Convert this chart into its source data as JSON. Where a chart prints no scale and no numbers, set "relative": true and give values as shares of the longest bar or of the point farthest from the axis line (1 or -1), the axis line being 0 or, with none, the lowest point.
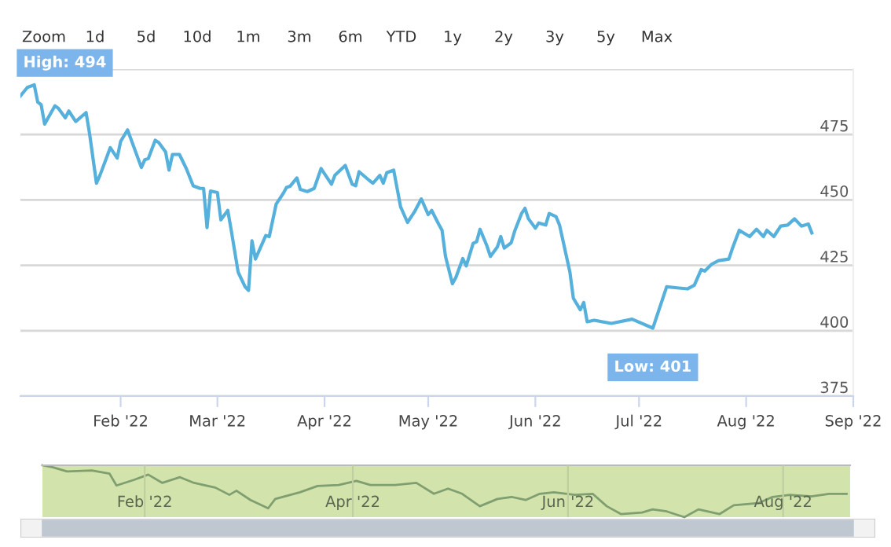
{
  "chart_data": [
    {
      "type": "line",
      "color": "#55b0dc",
      "xlim": [
        "2022-01-03",
        "2022-09-01"
      ],
      "ylim": [
        375,
        500
      ],
      "yticks": [
        375,
        400,
        425,
        450,
        475,
        {
          "value": 500,
          "label": null
        }
      ],
      "xticks": [
        {
          "value": "2022-02-01",
          "label": "Feb '22"
        },
        {
          "value": "2022-03-01",
          "label": "Mar '22"
        },
        {
          "value": "2022-04-01",
          "label": "Apr '22"
        },
        {
          "value": "2022-05-01",
          "label": "May '22"
        },
        {
          "value": "2022-06-01",
          "label": "Jun '22"
        },
        {
          "value": "2022-07-01",
          "label": "Jul '22"
        },
        {
          "value": "2022-08-01",
          "label": "Aug '22"
        },
        {
          "value": "2022-09-01",
          "label": "Sep '22"
        }
      ],
      "grid": "y",
      "x": [
        "2022-01-03",
        "2022-01-05",
        "2022-01-07",
        "2022-01-08",
        "2022-01-09",
        "2022-01-10",
        "2022-01-13",
        "2022-01-14",
        "2022-01-16",
        "2022-01-17",
        "2022-01-19",
        "2022-01-22",
        "2022-01-23",
        "2022-01-25",
        "2022-01-26",
        "2022-01-28",
        "2022-01-29",
        "2022-01-31",
        "2022-02-01",
        "2022-02-03",
        "2022-02-07",
        "2022-02-08",
        "2022-02-09",
        "2022-02-11",
        "2022-02-12",
        "2022-02-14",
        "2022-02-15",
        "2022-02-16",
        "2022-02-18",
        "2022-02-20",
        "2022-02-22",
        "2022-02-24",
        "2022-02-25",
        "2022-02-26",
        "2022-02-27",
        "2022-03-01",
        "2022-03-02",
        "2022-03-04",
        "2022-03-05",
        "2022-03-07",
        "2022-03-09",
        "2022-03-10",
        "2022-03-11",
        "2022-03-12",
        "2022-03-15",
        "2022-03-16",
        "2022-03-18",
        "2022-03-20",
        "2022-03-21",
        "2022-03-22",
        "2022-03-24",
        "2022-03-25",
        "2022-03-27",
        "2022-03-29",
        "2022-03-31",
        "2022-04-01",
        "2022-04-03",
        "2022-04-04",
        "2022-04-07",
        "2022-04-09",
        "2022-04-10",
        "2022-04-11",
        "2022-04-14",
        "2022-04-15",
        "2022-04-17",
        "2022-04-18",
        "2022-04-19",
        "2022-04-21",
        "2022-04-23",
        "2022-04-25",
        "2022-04-27",
        "2022-04-29",
        "2022-05-01",
        "2022-05-02",
        "2022-05-04",
        "2022-05-05",
        "2022-05-06",
        "2022-05-08",
        "2022-05-09",
        "2022-05-11",
        "2022-05-12",
        "2022-05-14",
        "2022-05-15",
        "2022-05-16",
        "2022-05-18",
        "2022-05-19",
        "2022-05-21",
        "2022-05-22",
        "2022-05-23",
        "2022-05-25",
        "2022-05-26",
        "2022-05-28",
        "2022-05-29",
        "2022-05-30",
        "2022-06-01",
        "2022-06-02",
        "2022-06-04",
        "2022-06-05",
        "2022-06-07",
        "2022-06-08",
        "2022-06-09",
        "2022-06-11",
        "2022-06-12",
        "2022-06-14",
        "2022-06-15",
        "2022-06-16",
        "2022-06-18",
        "2022-06-23",
        "2022-06-29",
        "2022-07-05",
        "2022-07-09",
        "2022-07-12",
        "2022-07-15",
        "2022-07-17",
        "2022-07-19",
        "2022-07-20",
        "2022-07-22",
        "2022-07-24",
        "2022-07-27",
        "2022-07-28",
        "2022-07-30",
        "2022-08-02",
        "2022-08-04",
        "2022-08-06",
        "2022-08-07",
        "2022-08-09",
        "2022-08-11",
        "2022-08-13",
        "2022-08-15",
        "2022-08-17",
        "2022-08-19",
        "2022-08-20"
      ],
      "values": [
        489.8,
        493,
        494,
        487.4,
        486.4,
        479,
        486,
        485,
        481.4,
        484,
        480,
        483.4,
        475.4,
        456.4,
        459.4,
        466.4,
        470,
        466,
        472.4,
        476.8,
        462.4,
        465.4,
        465.8,
        472.8,
        472,
        468.4,
        461.4,
        467.4,
        467.4,
        462,
        455.4,
        454.4,
        454.4,
        439.4,
        453.4,
        452.8,
        442.4,
        446,
        438.4,
        422.4,
        416.8,
        415.4,
        434.4,
        427.4,
        436.4,
        436,
        448.4,
        452.4,
        454.8,
        455.2,
        458.4,
        454,
        453.2,
        454.4,
        462,
        460,
        456,
        459.4,
        463.2,
        456,
        455.4,
        460.8,
        457.4,
        456.4,
        459.4,
        456.4,
        460.4,
        461.4,
        447.4,
        441.4,
        445.4,
        450.4,
        444.4,
        446,
        440.8,
        438.4,
        428.4,
        418,
        420.4,
        427.6,
        424.8,
        433.4,
        434,
        438.8,
        432.4,
        428.4,
        432,
        436,
        431.6,
        433.6,
        438,
        444.8,
        446.8,
        442.8,
        439.2,
        441.2,
        440.4,
        444.8,
        443.6,
        440.4,
        434.4,
        422.4,
        412.4,
        408,
        410.8,
        403.4,
        404,
        402.8,
        404.4,
        401,
        416.8,
        416.4,
        416,
        417.4,
        423.4,
        422.8,
        425.4,
        426.8,
        427.4,
        431.4,
        438.4,
        436,
        438.8,
        436,
        438.4,
        436,
        440,
        440.4,
        442.8,
        440,
        440.8,
        437.4
      ],
      "annotations": [
        "Zoom",
        "1d",
        "5d",
        "10d",
        "1m",
        "3m",
        "6m",
        "YTD",
        "1y",
        "2y",
        "3y",
        "5y",
        "Max",
        {
          "text": "High: 494",
          "x": "2022-01-07",
          "y": 494
        },
        {
          "text": "Low: 401",
          "x": "2022-07-05",
          "y": 401
        }
      ]
    },
    {
      "type": "line",
      "relative": true,
      "color": "#7f9f70",
      "xlim": [
        "2022-01-03",
        "2022-08-20"
      ],
      "grid": "x",
      "xticks": [
        {
          "value": "2022-02-01",
          "label": "Feb '22"
        },
        {
          "value": "2022-04-01",
          "label": "Apr '22"
        },
        {
          "value": "2022-06-01",
          "label": "Jun '22"
        },
        {
          "value": "2022-08-01",
          "label": "Aug '22"
        }
      ],
      "bands": [
        {
          "axis": "x",
          "from": "2022-01-03",
          "to": "2022-08-20",
          "color": "#d3e3ac"
        }
      ],
      "x": [
        "2022-01-03",
        "2022-01-06",
        "2022-01-10",
        "2022-01-17",
        "2022-01-22",
        "2022-01-24",
        "2022-01-29",
        "2022-02-02",
        "2022-02-06",
        "2022-02-11",
        "2022-02-15",
        "2022-02-21",
        "2022-02-25",
        "2022-02-27",
        "2022-03-03",
        "2022-03-08",
        "2022-03-10",
        "2022-03-17",
        "2022-03-22",
        "2022-03-28",
        "2022-04-02",
        "2022-04-06",
        "2022-04-13",
        "2022-04-19",
        "2022-04-24",
        "2022-04-28",
        "2022-05-02",
        "2022-05-07",
        "2022-05-12",
        "2022-05-16",
        "2022-05-20",
        "2022-05-24",
        "2022-05-28",
        "2022-06-03",
        "2022-06-08",
        "2022-06-12",
        "2022-06-16",
        "2022-06-22",
        "2022-06-25",
        "2022-06-29",
        "2022-07-04",
        "2022-07-08",
        "2022-07-14",
        "2022-07-18",
        "2022-07-25",
        "2022-07-29",
        "2022-08-03",
        "2022-08-09",
        "2022-08-14",
        "2022-08-19"
      ],
      "values": [
        1.0,
        0.96,
        0.88,
        0.9,
        0.84,
        0.61,
        0.72,
        0.82,
        0.66,
        0.77,
        0.66,
        0.57,
        0.43,
        0.51,
        0.33,
        0.17,
        0.35,
        0.48,
        0.6,
        0.62,
        0.7,
        0.62,
        0.62,
        0.66,
        0.45,
        0.55,
        0.45,
        0.21,
        0.35,
        0.39,
        0.33,
        0.45,
        0.48,
        0.43,
        0.45,
        0.21,
        0.06,
        0.09,
        0.15,
        0.11,
        0.0,
        0.15,
        0.06,
        0.23,
        0.27,
        0.39,
        0.43,
        0.4,
        0.45,
        0.45
      ]
    }
  ]
}
